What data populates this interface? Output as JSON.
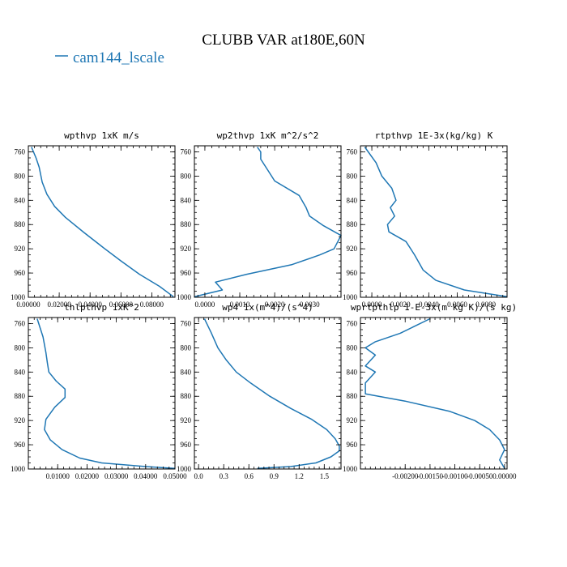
{
  "figure": {
    "title": "CLUBB VAR at180E,60N",
    "legend_label": "cam144_lscale",
    "legend_color": "#1f77b4",
    "line_color": "#1f77b4"
  },
  "chart_data": [
    {
      "type": "line",
      "title": "wpthvp  1xK m/s",
      "xlim": [
        0,
        0.095
      ],
      "ylim": [
        1000,
        750
      ],
      "x_ticks": [
        0,
        0.02,
        0.04,
        0.06,
        0.08
      ],
      "x_tick_labels": [
        "0.00000",
        "0.02000",
        "0.04000",
        "0.06000",
        "0.08000"
      ],
      "y_ticks": [
        760,
        800,
        840,
        880,
        920,
        960,
        1000
      ],
      "y_tick_labels": [
        "760",
        "800",
        "840",
        "880",
        "920",
        "960",
        "1000"
      ],
      "series": [
        {
          "x": [
            0.002,
            0.005,
            0.007,
            0.009,
            0.012,
            0.017,
            0.024,
            0.036,
            0.048,
            0.06,
            0.072,
            0.085,
            0.094
          ],
          "y": [
            752,
            770,
            785,
            810,
            830,
            850,
            868,
            893,
            917,
            940,
            962,
            982,
            999
          ]
        }
      ]
    },
    {
      "type": "line",
      "title": "wp2thvp  1xK m^2/s^2",
      "xlim": [
        -0.0003,
        0.0039
      ],
      "ylim": [
        1000,
        750
      ],
      "x_ticks": [
        0,
        0.001,
        0.002,
        0.003
      ],
      "x_tick_labels": [
        "0.0000",
        "0.0010",
        "0.0020",
        "0.0030"
      ],
      "y_ticks": [
        760,
        800,
        840,
        880,
        920,
        960,
        1000
      ],
      "y_tick_labels": [
        "760",
        "800",
        "840",
        "880",
        "920",
        "960",
        "1000"
      ],
      "series": [
        {
          "x": [
            0.0015,
            0.0016,
            0.0016,
            0.0018,
            0.002,
            0.0027,
            0.0029,
            0.003,
            0.0034,
            0.0039,
            0.0037,
            0.0033,
            0.0025,
            0.0012,
            0.0003,
            0.0005,
            -0.0003
          ],
          "y": [
            752,
            760,
            772,
            790,
            808,
            832,
            852,
            866,
            882,
            898,
            920,
            930,
            946,
            962,
            975,
            988,
            999
          ]
        }
      ]
    },
    {
      "type": "line",
      "title": "rtpthvp  1E-3x(kg/kg) K",
      "xlim": [
        -0.0008,
        0.0095
      ],
      "ylim": [
        1000,
        750
      ],
      "x_ticks": [
        0,
        0.002,
        0.004,
        0.006,
        0.008
      ],
      "x_tick_labels": [
        "0.0000",
        "0.0020",
        "0.0040",
        "0.0060",
        "0.0080"
      ],
      "y_ticks": [
        760,
        800,
        840,
        880,
        920,
        960,
        1000
      ],
      "y_tick_labels": [
        "760",
        "800",
        "840",
        "880",
        "920",
        "960",
        "1000"
      ],
      "series": [
        {
          "x": [
            -0.0005,
            0.0003,
            0.0007,
            0.0014,
            0.0017,
            0.0013,
            0.0016,
            0.0011,
            0.0012,
            0.0024,
            0.003,
            0.0036,
            0.0045,
            0.0065,
            0.0095
          ],
          "y": [
            752,
            778,
            800,
            820,
            840,
            852,
            866,
            880,
            892,
            908,
            930,
            955,
            972,
            988,
            999
          ]
        }
      ]
    },
    {
      "type": "line",
      "title": "thlpthvp  1xK^2",
      "xlim": [
        0,
        0.05
      ],
      "ylim": [
        1000,
        750
      ],
      "x_ticks": [
        0.01,
        0.02,
        0.03,
        0.04,
        0.05
      ],
      "x_tick_labels": [
        "0.01000",
        "0.02000",
        "0.03000",
        "0.04000",
        "0.05000"
      ],
      "y_ticks": [
        760,
        800,
        840,
        880,
        920,
        960,
        1000
      ],
      "y_tick_labels": [
        "760",
        "800",
        "840",
        "880",
        "920",
        "960",
        "1000"
      ],
      "series": [
        {
          "x": [
            0.003,
            0.005,
            0.006,
            0.0065,
            0.007,
            0.0095,
            0.0125,
            0.0125,
            0.009,
            0.006,
            0.0055,
            0.0075,
            0.0115,
            0.0175,
            0.025,
            0.04,
            0.05
          ],
          "y": [
            752,
            782,
            808,
            825,
            840,
            855,
            868,
            882,
            898,
            918,
            935,
            952,
            968,
            982,
            990,
            996,
            999
          ]
        }
      ]
    },
    {
      "type": "line",
      "title": "wp4  1x(m^4)/(s^4)",
      "xlim": [
        -0.05,
        1.7
      ],
      "ylim": [
        1000,
        750
      ],
      "x_ticks": [
        0,
        0.3,
        0.6,
        0.9,
        1.2,
        1.5
      ],
      "x_tick_labels": [
        "0.0",
        "0.3",
        "0.6",
        "0.9",
        "1.2",
        "1.5"
      ],
      "y_ticks": [
        760,
        800,
        840,
        880,
        920,
        960,
        1000
      ],
      "y_tick_labels": [
        "760",
        "800",
        "840",
        "880",
        "920",
        "960",
        "1000"
      ],
      "series": [
        {
          "x": [
            0.07,
            0.15,
            0.23,
            0.33,
            0.45,
            0.62,
            0.85,
            1.1,
            1.35,
            1.53,
            1.63,
            1.68,
            1.68,
            1.58,
            1.4,
            1.1,
            0.7
          ],
          "y": [
            752,
            775,
            800,
            820,
            840,
            858,
            880,
            900,
            918,
            935,
            950,
            962,
            970,
            980,
            990,
            996,
            999
          ]
        }
      ]
    },
    {
      "type": "line",
      "title": "wprtpthlp  1-E-3x(m kg K)/(s kg)",
      "xlim": [
        -0.0029,
        5e-05
      ],
      "ylim": [
        1000,
        750
      ],
      "x_ticks": [
        -0.002,
        -0.0015,
        -0.001,
        -0.0005,
        0
      ],
      "x_tick_labels": [
        "-0.00200",
        "-0.00150",
        "-0.00100",
        "-0.00050",
        "0.00000"
      ],
      "y_ticks": [
        760,
        800,
        840,
        880,
        920,
        960,
        1000
      ],
      "y_tick_labels": [
        "760",
        "800",
        "840",
        "880",
        "920",
        "960",
        "1000"
      ],
      "series": [
        {
          "x": [
            -0.0015,
            -0.0021,
            -0.0026,
            -0.0028,
            -0.0026,
            -0.0028,
            -0.0026,
            -0.0028,
            -0.0028,
            -0.002,
            -0.0011,
            -0.0006,
            -0.0003,
            -0.0001,
            0,
            -0.0001,
            0
          ],
          "y": [
            752,
            776,
            790,
            800,
            812,
            830,
            840,
            858,
            876,
            888,
            905,
            920,
            935,
            952,
            968,
            985,
            999
          ]
        }
      ]
    }
  ]
}
